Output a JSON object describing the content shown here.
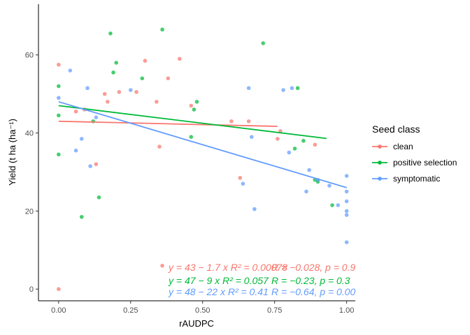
{
  "chart_data": {
    "type": "scatter",
    "xlabel": "rAUDPC",
    "ylabel": "Yield (t ha (ha⁻¹)",
    "xlim": [
      -0.07,
      1.03
    ],
    "ylim": [
      -3,
      73
    ],
    "x_ticks": [
      "0.00",
      "0.25",
      "0.50",
      "0.75",
      "1.00"
    ],
    "y_ticks": [
      "0",
      "20",
      "40",
      "60"
    ],
    "grid": false,
    "legend_position": "right",
    "legend_title": "Seed class",
    "series": [
      {
        "name": "clean",
        "color": "#F8766D",
        "points": [
          [
            0.0,
            57.5
          ],
          [
            0.0,
            0.0
          ],
          [
            0.06,
            45.5
          ],
          [
            0.09,
            46.0
          ],
          [
            0.13,
            32.0
          ],
          [
            0.16,
            50.0
          ],
          [
            0.17,
            48.0
          ],
          [
            0.21,
            50.5
          ],
          [
            0.27,
            50.5
          ],
          [
            0.3,
            58.5
          ],
          [
            0.34,
            48.0
          ],
          [
            0.35,
            36.5
          ],
          [
            0.36,
            6.0
          ],
          [
            0.38,
            54.0
          ],
          [
            0.42,
            59.0
          ],
          [
            0.46,
            47.0
          ],
          [
            0.6,
            43.0
          ],
          [
            0.63,
            28.5
          ],
          [
            0.66,
            43.0
          ],
          [
            0.76,
            38.5
          ],
          [
            0.77,
            40.5
          ],
          [
            0.89,
            37.0
          ]
        ],
        "trend": {
          "x": [
            0.0,
            0.76
          ],
          "y": [
            43.0,
            41.7
          ]
        },
        "equation": "y = 43 − 1.7 x   R² = 0.00078",
        "stats": "R = −0.028, p = 0.9"
      },
      {
        "name": "positive selection",
        "color": "#00BA38",
        "points": [
          [
            0.0,
            52.0
          ],
          [
            0.0,
            44.5
          ],
          [
            0.0,
            34.5
          ],
          [
            0.08,
            18.5
          ],
          [
            0.12,
            43.0
          ],
          [
            0.14,
            23.5
          ],
          [
            0.18,
            65.5
          ],
          [
            0.19,
            55.5
          ],
          [
            0.2,
            58.0
          ],
          [
            0.29,
            54.0
          ],
          [
            0.36,
            66.5
          ],
          [
            0.46,
            39.0
          ],
          [
            0.47,
            46.0
          ],
          [
            0.48,
            48.0
          ],
          [
            0.71,
            63.0
          ],
          [
            0.82,
            36.0
          ],
          [
            0.83,
            51.5
          ],
          [
            0.85,
            38.0
          ],
          [
            0.89,
            28.0
          ],
          [
            0.9,
            27.5
          ],
          [
            0.95,
            21.5
          ]
        ],
        "trend": {
          "x": [
            0.0,
            0.93
          ],
          "y": [
            47.0,
            38.6
          ]
        },
        "equation": "y = 47 − 9 x   R² = 0.057",
        "stats": "R = −0.23, p = 0.3"
      },
      {
        "name": "symptomatic",
        "color": "#619CFF",
        "points": [
          [
            0.0,
            49.0
          ],
          [
            0.04,
            56.0
          ],
          [
            0.06,
            35.5
          ],
          [
            0.08,
            38.5
          ],
          [
            0.1,
            51.5
          ],
          [
            0.11,
            31.5
          ],
          [
            0.13,
            44.0
          ],
          [
            0.25,
            51.0
          ],
          [
            0.64,
            27.0
          ],
          [
            0.66,
            51.5
          ],
          [
            0.67,
            39.0
          ],
          [
            0.68,
            20.5
          ],
          [
            0.78,
            51.0
          ],
          [
            0.8,
            35.0
          ],
          [
            0.81,
            51.5
          ],
          [
            0.86,
            25.0
          ],
          [
            0.87,
            30.5
          ],
          [
            0.9,
            28.0
          ],
          [
            0.94,
            26.5
          ],
          [
            0.97,
            21.5
          ],
          [
            1.0,
            29.0
          ],
          [
            1.0,
            25.0
          ],
          [
            1.0,
            22.5
          ],
          [
            1.0,
            20.0
          ],
          [
            1.0,
            19.0
          ],
          [
            1.0,
            12.0
          ]
        ],
        "trend": {
          "x": [
            0.0,
            1.0
          ],
          "y": [
            48.0,
            26.0
          ]
        },
        "equation": "y = 48 − 22 x   R² = 0.41",
        "stats": "R = −0.64, p = 0.00"
      }
    ]
  }
}
